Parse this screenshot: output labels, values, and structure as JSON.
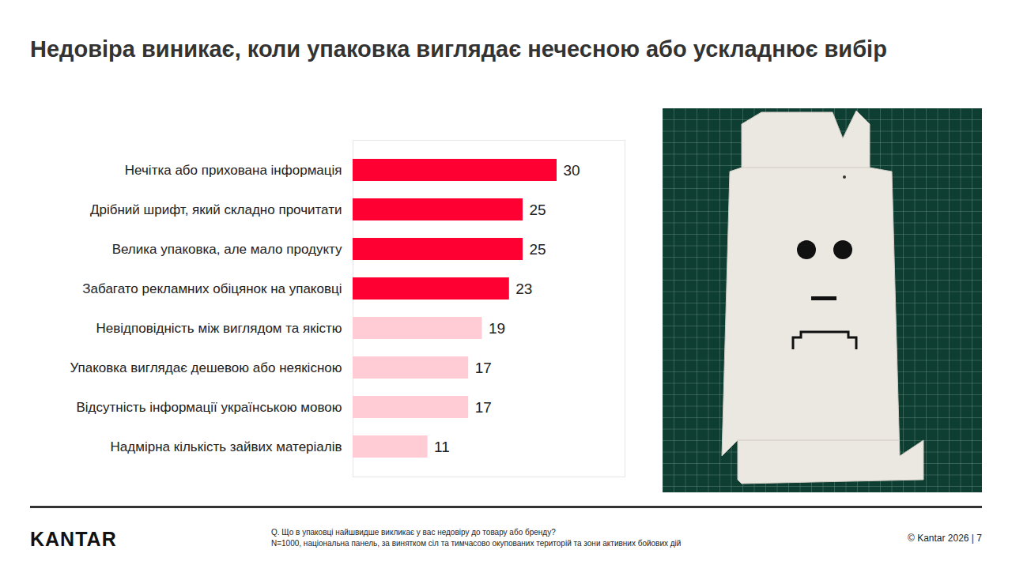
{
  "chart_data": {
    "type": "bar",
    "title": "Недовіра виникає, коли упаковка виглядає нечесною або ускладнює вибір",
    "orientation": "horizontal",
    "categories": [
      "Нечітка або прихована інформація",
      "Дрібний шрифт, який складно прочитати",
      "Велика упаковка, але мало продукту",
      "Забагато рекламних обіцянок на упаковці",
      "Невідповідність між виглядом та якістю",
      "Упаковка виглядає дешевою або неякісною",
      "Відсутність інформації українською мовою",
      "Надмірна кількість зайвих матеріалів"
    ],
    "values": [
      30,
      25,
      25,
      23,
      19,
      17,
      17,
      11
    ],
    "colors": [
      "#ff0033",
      "#ff0033",
      "#ff0033",
      "#ff0033",
      "#ffccd6",
      "#ffccd6",
      "#ffccd6",
      "#ffccd6"
    ],
    "xlim": [
      0,
      40
    ],
    "data_labels": true,
    "tick_labels": "y",
    "grid": false
  },
  "footer": {
    "logo": "KANTAR",
    "question": "Q. Що в упаковці найшвидше викликає у вас недовіру до товару або бренду?",
    "note": "N=1000, національна панель, за винятком сіл та тимчасово окупованих територій та зони активних бойових дій",
    "copyright": "© Kantar 2026 | 7"
  }
}
